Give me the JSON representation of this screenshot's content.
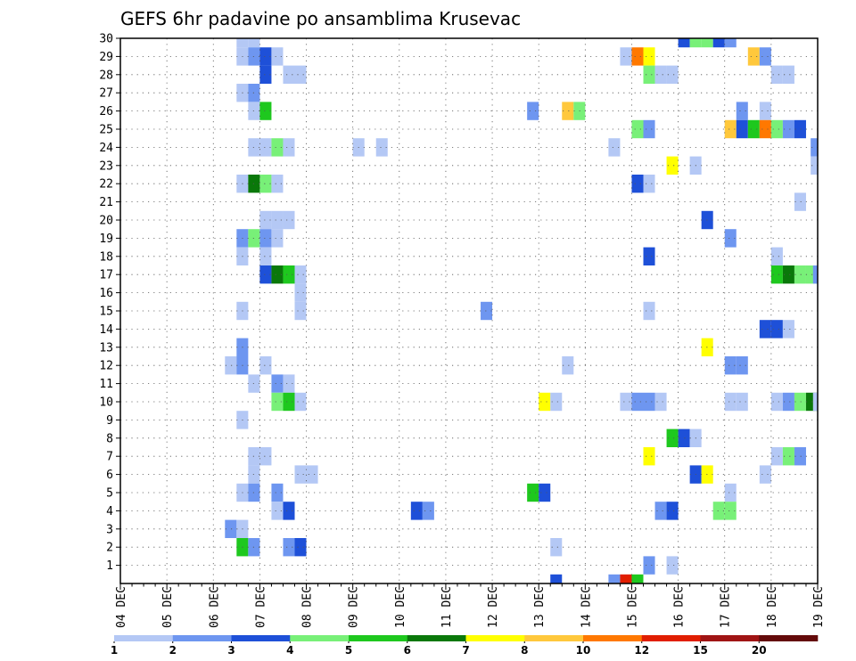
{
  "chart_data": {
    "type": "heatmap",
    "title": "GEFS 6hr padavine po ansamblima Krusevac",
    "x_tick_labels": [
      "04 DEC",
      "05 DEC",
      "06 DEC",
      "07 DEC",
      "08 DEC",
      "09 DEC",
      "10 DEC",
      "11 DEC",
      "12 DEC",
      "13 DEC",
      "14 DEC",
      "15 DEC",
      "16 DEC",
      "17 DEC",
      "18 DEC",
      "19 DEC"
    ],
    "y_tick_labels": [
      "1",
      "2",
      "3",
      "4",
      "5",
      "6",
      "7",
      "8",
      "9",
      "10",
      "11",
      "12",
      "13",
      "14",
      "15",
      "16",
      "17",
      "18",
      "19",
      "20",
      "21",
      "22",
      "23",
      "24",
      "25",
      "26",
      "27",
      "28",
      "29",
      "30"
    ],
    "x_range_days": [
      0,
      15
    ],
    "y_range": [
      0,
      30
    ],
    "time_step_days": 0.25,
    "grid": "dotted",
    "colorbar": {
      "boundaries": [
        "1",
        "2",
        "3",
        "4",
        "5",
        "6",
        "7",
        "8",
        "10",
        "12",
        "15",
        "20"
      ],
      "colors": [
        "#b4c8f5",
        "#6e96f0",
        "#1e50d8",
        "#78f078",
        "#1ec81e",
        "#0a780a",
        "#ffff00",
        "#ffc83c",
        "#ff7800",
        "#e11e00",
        "#a01414",
        "#640a0a"
      ]
    },
    "cells": [
      {
        "day": 2.5,
        "member": 30,
        "color": "#b4c8f5"
      },
      {
        "day": 2.75,
        "member": 30,
        "color": "#b4c8f5"
      },
      {
        "day": 12,
        "member": 30,
        "color": "#1e50d8"
      },
      {
        "day": 12.25,
        "member": 30,
        "color": "#78f078"
      },
      {
        "day": 12.5,
        "member": 30,
        "color": "#78f078"
      },
      {
        "day": 12.75,
        "member": 30,
        "color": "#1e50d8"
      },
      {
        "day": 13,
        "member": 30,
        "color": "#6e96f0"
      },
      {
        "day": 2.5,
        "member": 29,
        "color": "#b4c8f5"
      },
      {
        "day": 2.75,
        "member": 29,
        "color": "#6e96f0"
      },
      {
        "day": 3,
        "member": 29,
        "color": "#1e50d8"
      },
      {
        "day": 3.25,
        "member": 29,
        "color": "#b4c8f5"
      },
      {
        "day": 10.75,
        "member": 29,
        "color": "#b4c8f5"
      },
      {
        "day": 11,
        "member": 29,
        "color": "#ff7800"
      },
      {
        "day": 11.25,
        "member": 29,
        "color": "#ffff00"
      },
      {
        "day": 13.5,
        "member": 29,
        "color": "#ffc83c"
      },
      {
        "day": 13.75,
        "member": 29,
        "color": "#6e96f0"
      },
      {
        "day": 3,
        "member": 28,
        "color": "#1e50d8"
      },
      {
        "day": 3.5,
        "member": 28,
        "color": "#b4c8f5"
      },
      {
        "day": 3.75,
        "member": 28,
        "color": "#b4c8f5"
      },
      {
        "day": 11.25,
        "member": 28,
        "color": "#78f078"
      },
      {
        "day": 11.5,
        "member": 28,
        "color": "#b4c8f5"
      },
      {
        "day": 11.75,
        "member": 28,
        "color": "#b4c8f5"
      },
      {
        "day": 14,
        "member": 28,
        "color": "#b4c8f5"
      },
      {
        "day": 14.25,
        "member": 28,
        "color": "#b4c8f5"
      },
      {
        "day": 2.5,
        "member": 27,
        "color": "#b4c8f5"
      },
      {
        "day": 2.75,
        "member": 27,
        "color": "#6e96f0"
      },
      {
        "day": 2.75,
        "member": 26,
        "color": "#b4c8f5"
      },
      {
        "day": 3,
        "member": 26,
        "color": "#1ec81e"
      },
      {
        "day": 8.75,
        "member": 26,
        "color": "#6e96f0"
      },
      {
        "day": 9.5,
        "member": 26,
        "color": "#ffc83c"
      },
      {
        "day": 9.75,
        "member": 26,
        "color": "#78f078"
      },
      {
        "day": 13.25,
        "member": 26,
        "color": "#6e96f0"
      },
      {
        "day": 13.75,
        "member": 26,
        "color": "#b4c8f5"
      },
      {
        "day": 11,
        "member": 25,
        "color": "#78f078"
      },
      {
        "day": 11.25,
        "member": 25,
        "color": "#6e96f0"
      },
      {
        "day": 13,
        "member": 25,
        "color": "#ffc83c"
      },
      {
        "day": 13.25,
        "member": 25,
        "color": "#1e50d8"
      },
      {
        "day": 13.5,
        "member": 25,
        "color": "#1ec81e"
      },
      {
        "day": 13.75,
        "member": 25,
        "color": "#ff7800"
      },
      {
        "day": 14,
        "member": 25,
        "color": "#78f078"
      },
      {
        "day": 14.25,
        "member": 25,
        "color": "#6e96f0"
      },
      {
        "day": 14.5,
        "member": 25,
        "color": "#1e50d8"
      },
      {
        "day": 2.75,
        "member": 24,
        "color": "#b4c8f5"
      },
      {
        "day": 3,
        "member": 24,
        "color": "#b4c8f5"
      },
      {
        "day": 3.25,
        "member": 24,
        "color": "#78f078"
      },
      {
        "day": 3.5,
        "member": 24,
        "color": "#b4c8f5"
      },
      {
        "day": 5,
        "member": 24,
        "color": "#b4c8f5"
      },
      {
        "day": 5.5,
        "member": 24,
        "color": "#b4c8f5"
      },
      {
        "day": 10.5,
        "member": 24,
        "color": "#b4c8f5"
      },
      {
        "day": 14.85,
        "member": 24,
        "color": "#6e96f0"
      },
      {
        "day": 11.75,
        "member": 23,
        "color": "#ffff00"
      },
      {
        "day": 12.25,
        "member": 23,
        "color": "#b4c8f5"
      },
      {
        "day": 14.85,
        "member": 23,
        "color": "#b4c8f5"
      },
      {
        "day": 2.5,
        "member": 22,
        "color": "#b4c8f5"
      },
      {
        "day": 2.75,
        "member": 22,
        "color": "#0a780a"
      },
      {
        "day": 3,
        "member": 22,
        "color": "#78f078"
      },
      {
        "day": 3.25,
        "member": 22,
        "color": "#b4c8f5"
      },
      {
        "day": 11,
        "member": 22,
        "color": "#1e50d8"
      },
      {
        "day": 11.25,
        "member": 22,
        "color": "#b4c8f5"
      },
      {
        "day": 14.5,
        "member": 21,
        "color": "#b4c8f5"
      },
      {
        "day": 3,
        "member": 20,
        "color": "#b4c8f5"
      },
      {
        "day": 3.25,
        "member": 20,
        "color": "#b4c8f5"
      },
      {
        "day": 3.5,
        "member": 20,
        "color": "#b4c8f5"
      },
      {
        "day": 12.5,
        "member": 20,
        "color": "#1e50d8"
      },
      {
        "day": 2.5,
        "member": 19,
        "color": "#6e96f0"
      },
      {
        "day": 2.75,
        "member": 19,
        "color": "#78f078"
      },
      {
        "day": 3,
        "member": 19,
        "color": "#6e96f0"
      },
      {
        "day": 3.25,
        "member": 19,
        "color": "#b4c8f5"
      },
      {
        "day": 13,
        "member": 19,
        "color": "#6e96f0"
      },
      {
        "day": 2.5,
        "member": 18,
        "color": "#b4c8f5"
      },
      {
        "day": 3,
        "member": 18,
        "color": "#b4c8f5"
      },
      {
        "day": 11.25,
        "member": 18,
        "color": "#1e50d8"
      },
      {
        "day": 14,
        "member": 18,
        "color": "#b4c8f5"
      },
      {
        "day": 3,
        "member": 17,
        "color": "#1e50d8"
      },
      {
        "day": 3.25,
        "member": 17,
        "color": "#0a780a"
      },
      {
        "day": 3.5,
        "member": 17,
        "color": "#1ec81e"
      },
      {
        "day": 3.75,
        "member": 17,
        "color": "#b4c8f5"
      },
      {
        "day": 14,
        "member": 17,
        "color": "#1ec81e"
      },
      {
        "day": 14.25,
        "member": 17,
        "color": "#0a780a"
      },
      {
        "day": 14.5,
        "member": 17,
        "color": "#78f078"
      },
      {
        "day": 14.75,
        "member": 17,
        "color": "#78f078"
      },
      {
        "day": 14.9,
        "member": 17,
        "color": "#6e96f0"
      },
      {
        "day": 3.75,
        "member": 16,
        "color": "#b4c8f5"
      },
      {
        "day": 2.5,
        "member": 15,
        "color": "#b4c8f5"
      },
      {
        "day": 3.75,
        "member": 15,
        "color": "#b4c8f5"
      },
      {
        "day": 7.75,
        "member": 15,
        "color": "#6e96f0"
      },
      {
        "day": 11.25,
        "member": 15,
        "color": "#b4c8f5"
      },
      {
        "day": 13.75,
        "member": 14,
        "color": "#1e50d8"
      },
      {
        "day": 14,
        "member": 14,
        "color": "#1e50d8"
      },
      {
        "day": 14.25,
        "member": 14,
        "color": "#b4c8f5"
      },
      {
        "day": 2.5,
        "member": 13,
        "color": "#6e96f0"
      },
      {
        "day": 12.5,
        "member": 13,
        "color": "#ffff00"
      },
      {
        "day": 2.25,
        "member": 12,
        "color": "#b4c8f5"
      },
      {
        "day": 2.5,
        "member": 12,
        "color": "#6e96f0"
      },
      {
        "day": 3,
        "member": 12,
        "color": "#b4c8f5"
      },
      {
        "day": 9.5,
        "member": 12,
        "color": "#b4c8f5"
      },
      {
        "day": 13,
        "member": 12,
        "color": "#6e96f0"
      },
      {
        "day": 13.25,
        "member": 12,
        "color": "#6e96f0"
      },
      {
        "day": 2.75,
        "member": 11,
        "color": "#b4c8f5"
      },
      {
        "day": 3.25,
        "member": 11,
        "color": "#6e96f0"
      },
      {
        "day": 3.5,
        "member": 11,
        "color": "#b4c8f5"
      },
      {
        "day": 3.25,
        "member": 10,
        "color": "#78f078"
      },
      {
        "day": 3.5,
        "member": 10,
        "color": "#1ec81e"
      },
      {
        "day": 3.75,
        "member": 10,
        "color": "#b4c8f5"
      },
      {
        "day": 9,
        "member": 10,
        "color": "#ffff00"
      },
      {
        "day": 9.25,
        "member": 10,
        "color": "#b4c8f5"
      },
      {
        "day": 10.75,
        "member": 10,
        "color": "#b4c8f5"
      },
      {
        "day": 11,
        "member": 10,
        "color": "#6e96f0"
      },
      {
        "day": 11.25,
        "member": 10,
        "color": "#6e96f0"
      },
      {
        "day": 11.5,
        "member": 10,
        "color": "#b4c8f5"
      },
      {
        "day": 13,
        "member": 10,
        "color": "#b4c8f5"
      },
      {
        "day": 13.25,
        "member": 10,
        "color": "#b4c8f5"
      },
      {
        "day": 14,
        "member": 10,
        "color": "#b4c8f5"
      },
      {
        "day": 14.25,
        "member": 10,
        "color": "#6e96f0"
      },
      {
        "day": 14.5,
        "member": 10,
        "color": "#78f078"
      },
      {
        "day": 14.75,
        "member": 10,
        "color": "#0a780a"
      },
      {
        "day": 14.9,
        "member": 10,
        "color": "#b4c8f5"
      },
      {
        "day": 2.5,
        "member": 9,
        "color": "#b4c8f5"
      },
      {
        "day": 11.75,
        "member": 8,
        "color": "#1ec81e"
      },
      {
        "day": 12,
        "member": 8,
        "color": "#1e50d8"
      },
      {
        "day": 12.25,
        "member": 8,
        "color": "#b4c8f5"
      },
      {
        "day": 2.75,
        "member": 7,
        "color": "#b4c8f5"
      },
      {
        "day": 3,
        "member": 7,
        "color": "#b4c8f5"
      },
      {
        "day": 11.25,
        "member": 7,
        "color": "#ffff00"
      },
      {
        "day": 14,
        "member": 7,
        "color": "#b4c8f5"
      },
      {
        "day": 14.25,
        "member": 7,
        "color": "#78f078"
      },
      {
        "day": 14.5,
        "member": 7,
        "color": "#6e96f0"
      },
      {
        "day": 2.75,
        "member": 6,
        "color": "#b4c8f5"
      },
      {
        "day": 3.75,
        "member": 6,
        "color": "#b4c8f5"
      },
      {
        "day": 4,
        "member": 6,
        "color": "#b4c8f5"
      },
      {
        "day": 12.25,
        "member": 6,
        "color": "#1e50d8"
      },
      {
        "day": 12.5,
        "member": 6,
        "color": "#ffff00"
      },
      {
        "day": 13.75,
        "member": 6,
        "color": "#b4c8f5"
      },
      {
        "day": 2.5,
        "member": 5,
        "color": "#b4c8f5"
      },
      {
        "day": 2.75,
        "member": 5,
        "color": "#6e96f0"
      },
      {
        "day": 3.25,
        "member": 5,
        "color": "#6e96f0"
      },
      {
        "day": 8.75,
        "member": 5,
        "color": "#1ec81e"
      },
      {
        "day": 9,
        "member": 5,
        "color": "#1e50d8"
      },
      {
        "day": 13,
        "member": 5,
        "color": "#b4c8f5"
      },
      {
        "day": 3.25,
        "member": 4,
        "color": "#b4c8f5"
      },
      {
        "day": 3.5,
        "member": 4,
        "color": "#1e50d8"
      },
      {
        "day": 6.25,
        "member": 4,
        "color": "#1e50d8"
      },
      {
        "day": 6.5,
        "member": 4,
        "color": "#6e96f0"
      },
      {
        "day": 11.5,
        "member": 4,
        "color": "#6e96f0"
      },
      {
        "day": 11.75,
        "member": 4,
        "color": "#1e50d8"
      },
      {
        "day": 12.75,
        "member": 4,
        "color": "#78f078"
      },
      {
        "day": 13,
        "member": 4,
        "color": "#78f078"
      },
      {
        "day": 2.25,
        "member": 3,
        "color": "#6e96f0"
      },
      {
        "day": 2.5,
        "member": 3,
        "color": "#b4c8f5"
      },
      {
        "day": 2.5,
        "member": 2,
        "color": "#1ec81e"
      },
      {
        "day": 2.75,
        "member": 2,
        "color": "#6e96f0"
      },
      {
        "day": 3.5,
        "member": 2,
        "color": "#6e96f0"
      },
      {
        "day": 3.75,
        "member": 2,
        "color": "#1e50d8"
      },
      {
        "day": 9.25,
        "member": 2,
        "color": "#b4c8f5"
      },
      {
        "day": 11.25,
        "member": 1,
        "color": "#6e96f0"
      },
      {
        "day": 11.75,
        "member": 1,
        "color": "#b4c8f5"
      },
      {
        "day": 9.25,
        "member": 0,
        "color": "#1e50d8"
      },
      {
        "day": 10.5,
        "member": 0,
        "color": "#6e96f0"
      },
      {
        "day": 10.75,
        "member": 0,
        "color": "#e11e00"
      },
      {
        "day": 11,
        "member": 0,
        "color": "#1ec81e"
      }
    ]
  }
}
